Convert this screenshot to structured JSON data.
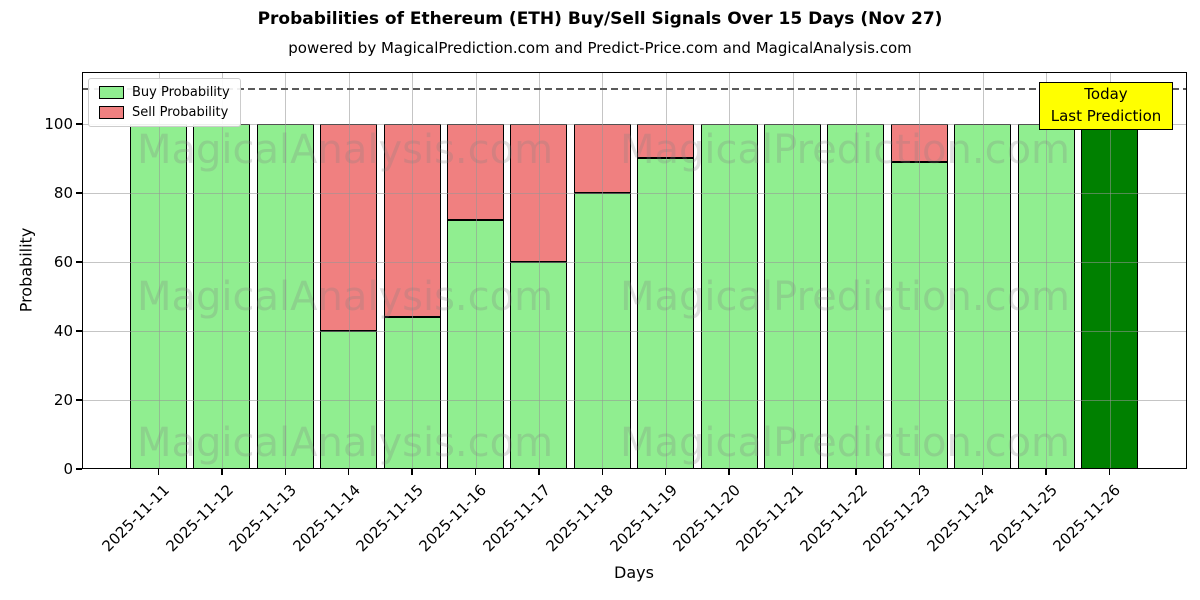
{
  "figure": {
    "title": "Probabilities of Ethereum (ETH) Buy/Sell Signals Over 15 Days (Nov 27)",
    "subtitle": "powered by MagicalPrediction.com and Predict-Price.com and MagicalAnalysis.com"
  },
  "axes": {
    "ylabel": "Probability",
    "xlabel": "Days",
    "yticks": [
      0,
      20,
      40,
      60,
      80,
      100
    ],
    "ylim": [
      0,
      115
    ],
    "dashed_line_y": 110,
    "grid": true
  },
  "legend": {
    "position": "upper left",
    "items": [
      {
        "label": "Buy Probability",
        "color": "#90EE90"
      },
      {
        "label": "Sell Probability",
        "color": "#F08080"
      }
    ]
  },
  "annotation_box": {
    "lines": [
      "Today",
      "Last Prediction"
    ],
    "bg_color": "#FFFF00",
    "border_color": "#000000"
  },
  "watermarks": {
    "left_text": "MagicalAnalysis.com",
    "right_text": "MagicalPrediction.com"
  },
  "colors": {
    "buy": "#90EE90",
    "sell": "#F08080",
    "today_bar": "#008000",
    "bar_edge": "#000000",
    "grid": "#969696",
    "dashed": "#5a5a5a"
  },
  "chart_data": {
    "type": "bar",
    "stacked": true,
    "title": "Probabilities of Ethereum (ETH) Buy/Sell Signals Over 15 Days (Nov 27)",
    "xlabel": "Days",
    "ylabel": "Probability",
    "ylim": [
      0,
      115
    ],
    "grid": true,
    "legend_position": "upper left",
    "categories": [
      "2025-11-11",
      "2025-11-12",
      "2025-11-13",
      "2025-11-14",
      "2025-11-15",
      "2025-11-16",
      "2025-11-17",
      "2025-11-18",
      "2025-11-19",
      "2025-11-20",
      "2025-11-21",
      "2025-11-22",
      "2025-11-23",
      "2025-11-24",
      "2025-11-25",
      "2025-11-26"
    ],
    "series": [
      {
        "name": "Buy Probability",
        "color": "#90EE90",
        "values": [
          100,
          100,
          100,
          40,
          44,
          72,
          60,
          80,
          90,
          100,
          100,
          100,
          89,
          100,
          100,
          100
        ]
      },
      {
        "name": "Sell Probability",
        "color": "#F08080",
        "values": [
          0,
          0,
          0,
          60,
          56,
          28,
          40,
          20,
          10,
          0,
          0,
          0,
          11,
          0,
          0,
          0
        ]
      }
    ],
    "today_bar_index": 15,
    "annotation": "Today / Last Prediction on 2025-11-26",
    "dashed_reference_line": 110
  }
}
